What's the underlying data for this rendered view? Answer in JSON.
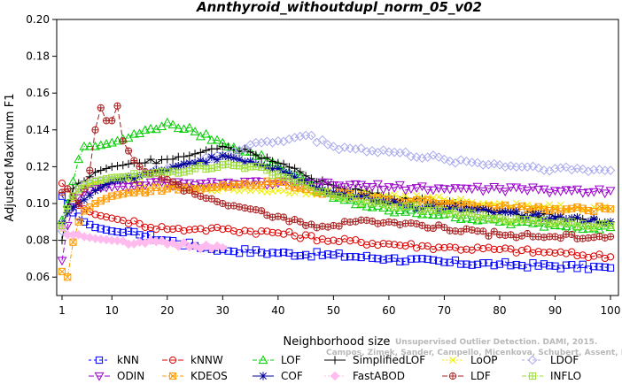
{
  "chart_data": {
    "type": "line",
    "title": "Annthyroid_withoutdupl_norm_05_v02",
    "xlabel": "Neighborhood size",
    "ylabel": "Adjusted Maximum F1",
    "xlim": [
      1,
      100
    ],
    "ylim": [
      0.05,
      0.2
    ],
    "xticks": [
      1,
      10,
      20,
      30,
      40,
      50,
      60,
      70,
      80,
      90,
      100
    ],
    "yticks": [
      0.06,
      0.08,
      0.1,
      0.12,
      0.14,
      0.16,
      0.18,
      0.2
    ],
    "ytick_labels": [
      "0.06",
      "0.08",
      "0.10",
      "0.12",
      "0.14",
      "0.16",
      "0.18",
      "0.20"
    ],
    "grid": false,
    "legend_position": "bottom",
    "watermark": [
      "Unsupervised Outlier Detection. DAMI, 2015.",
      "Campos, Zimek, Sander, Campello, Micenkova, Schubert, Assent, Houle"
    ],
    "series": [
      {
        "name": "kNN",
        "color": "#0000ff",
        "marker": "square",
        "dash": "3,3",
        "x": [
          1,
          2,
          3,
          4,
          5,
          7,
          10,
          15,
          20,
          25,
          30,
          40,
          50,
          60,
          70,
          80,
          90,
          100
        ],
        "y": [
          0.104,
          0.1,
          0.095,
          0.093,
          0.09,
          0.087,
          0.085,
          0.083,
          0.08,
          0.077,
          0.075,
          0.073,
          0.072,
          0.07,
          0.068,
          0.067,
          0.066,
          0.065
        ]
      },
      {
        "name": "kNNW",
        "color": "#dd0000",
        "marker": "circle",
        "dash": "6,3",
        "x": [
          1,
          2,
          3,
          4,
          5,
          7,
          10,
          15,
          20,
          25,
          30,
          40,
          50,
          60,
          70,
          80,
          90,
          100
        ],
        "y": [
          0.111,
          0.108,
          0.103,
          0.099,
          0.097,
          0.094,
          0.092,
          0.089,
          0.086,
          0.086,
          0.086,
          0.084,
          0.08,
          0.078,
          0.076,
          0.075,
          0.073,
          0.071
        ]
      },
      {
        "name": "LOF",
        "color": "#00cc00",
        "marker": "triangle-up",
        "dash": "5,2,1,2",
        "x": [
          1,
          2,
          3,
          4,
          5,
          7,
          10,
          15,
          20,
          25,
          30,
          35,
          40,
          45,
          50,
          60,
          70,
          80,
          90,
          100
        ],
        "y": [
          0.091,
          0.1,
          0.112,
          0.124,
          0.131,
          0.131,
          0.133,
          0.138,
          0.144,
          0.139,
          0.133,
          0.128,
          0.121,
          0.112,
          0.103,
          0.096,
          0.094,
          0.09,
          0.088,
          0.087
        ]
      },
      {
        "name": "SimplifiedLOF",
        "color": "#000000",
        "marker": "plus",
        "dash": "",
        "x": [
          1,
          2,
          3,
          4,
          5,
          7,
          10,
          15,
          20,
          25,
          30,
          35,
          40,
          45,
          50,
          60,
          70,
          80,
          90,
          100
        ],
        "y": [
          0.08,
          0.098,
          0.108,
          0.111,
          0.112,
          0.117,
          0.12,
          0.122,
          0.124,
          0.127,
          0.131,
          0.128,
          0.122,
          0.115,
          0.11,
          0.104,
          0.1,
          0.096,
          0.093,
          0.09
        ]
      },
      {
        "name": "LoOP",
        "color": "#eeee00",
        "marker": "x",
        "dash": "2,2",
        "x": [
          1,
          2,
          3,
          4,
          5,
          7,
          10,
          15,
          20,
          30,
          40,
          50,
          60,
          70,
          80,
          90,
          100
        ],
        "y": [
          0.086,
          0.095,
          0.102,
          0.106,
          0.109,
          0.111,
          0.112,
          0.111,
          0.11,
          0.108,
          0.107,
          0.106,
          0.104,
          0.102,
          0.1,
          0.098,
          0.097
        ]
      },
      {
        "name": "LDOF",
        "color": "#aaaaee",
        "marker": "diamond",
        "dash": "3,3",
        "x": [
          1,
          2,
          3,
          4,
          5,
          7,
          10,
          15,
          20,
          25,
          30,
          35,
          40,
          45,
          50,
          60,
          70,
          80,
          90,
          100
        ],
        "y": [
          0.085,
          0.095,
          0.104,
          0.108,
          0.11,
          0.112,
          0.113,
          0.115,
          0.119,
          0.122,
          0.126,
          0.132,
          0.134,
          0.137,
          0.131,
          0.128,
          0.124,
          0.121,
          0.119,
          0.118
        ]
      },
      {
        "name": "ODIN",
        "color": "#9900cc",
        "marker": "triangle-down",
        "dash": "6,3",
        "x": [
          1,
          2,
          3,
          4,
          5,
          7,
          10,
          15,
          20,
          25,
          30,
          40,
          50,
          60,
          70,
          80,
          90,
          100
        ],
        "y": [
          0.069,
          0.088,
          0.098,
          0.103,
          0.106,
          0.108,
          0.109,
          0.11,
          0.111,
          0.11,
          0.111,
          0.111,
          0.11,
          0.109,
          0.108,
          0.108,
          0.107,
          0.107
        ]
      },
      {
        "name": "KDEOS",
        "color": "#ff9900",
        "marker": "square-x",
        "dash": "5,2,1,2",
        "x": [
          1,
          2,
          3,
          4,
          5,
          7,
          10,
          15,
          20,
          25,
          30,
          40,
          50,
          60,
          70,
          80,
          90,
          100
        ],
        "y": [
          0.063,
          0.06,
          0.079,
          0.09,
          0.096,
          0.1,
          0.104,
          0.107,
          0.108,
          0.108,
          0.11,
          0.112,
          0.105,
          0.102,
          0.1,
          0.098,
          0.097,
          0.097
        ]
      },
      {
        "name": "COF",
        "color": "#000099",
        "marker": "star",
        "dash": "",
        "x": [
          1,
          2,
          3,
          4,
          5,
          7,
          10,
          15,
          20,
          25,
          30,
          35,
          40,
          45,
          50,
          60,
          70,
          80,
          90,
          100
        ],
        "y": [
          0.089,
          0.095,
          0.098,
          0.1,
          0.102,
          0.107,
          0.112,
          0.115,
          0.118,
          0.122,
          0.126,
          0.123,
          0.119,
          0.112,
          0.106,
          0.1,
          0.097,
          0.095,
          0.092,
          0.09
        ]
      },
      {
        "name": "FastABOD",
        "color": "#ffbbee",
        "marker": "diamond-filled",
        "dash": "2,2",
        "x": [
          1,
          2,
          3,
          4,
          5,
          7,
          10,
          15,
          20,
          25,
          30
        ],
        "y": [
          0.087,
          0.083,
          0.083,
          0.083,
          0.082,
          0.081,
          0.08,
          0.079,
          0.078,
          0.077,
          0.076
        ]
      },
      {
        "name": "LDF",
        "color": "#aa2222",
        "marker": "circle-plus",
        "dash": "6,3",
        "x": [
          1,
          2,
          3,
          4,
          5,
          6,
          7,
          8,
          9,
          10,
          11,
          12,
          15,
          20,
          25,
          30,
          35,
          40,
          45,
          50,
          55,
          60,
          70,
          80,
          90,
          100
        ],
        "y": [
          0.106,
          0.108,
          0.104,
          0.1,
          0.108,
          0.118,
          0.14,
          0.152,
          0.145,
          0.145,
          0.153,
          0.134,
          0.12,
          0.113,
          0.105,
          0.1,
          0.097,
          0.093,
          0.088,
          0.088,
          0.091,
          0.09,
          0.087,
          0.083,
          0.082,
          0.082
        ]
      },
      {
        "name": "INFLO",
        "color": "#99dd33",
        "marker": "square-plus",
        "dash": "5,2,1,2",
        "x": [
          1,
          2,
          3,
          4,
          5,
          7,
          10,
          15,
          20,
          25,
          30,
          35,
          40,
          45,
          50,
          60,
          70,
          80,
          90,
          100
        ],
        "y": [
          0.088,
          0.097,
          0.104,
          0.108,
          0.11,
          0.112,
          0.114,
          0.115,
          0.117,
          0.119,
          0.121,
          0.12,
          0.116,
          0.11,
          0.104,
          0.099,
          0.096,
          0.092,
          0.089,
          0.088
        ]
      }
    ]
  }
}
